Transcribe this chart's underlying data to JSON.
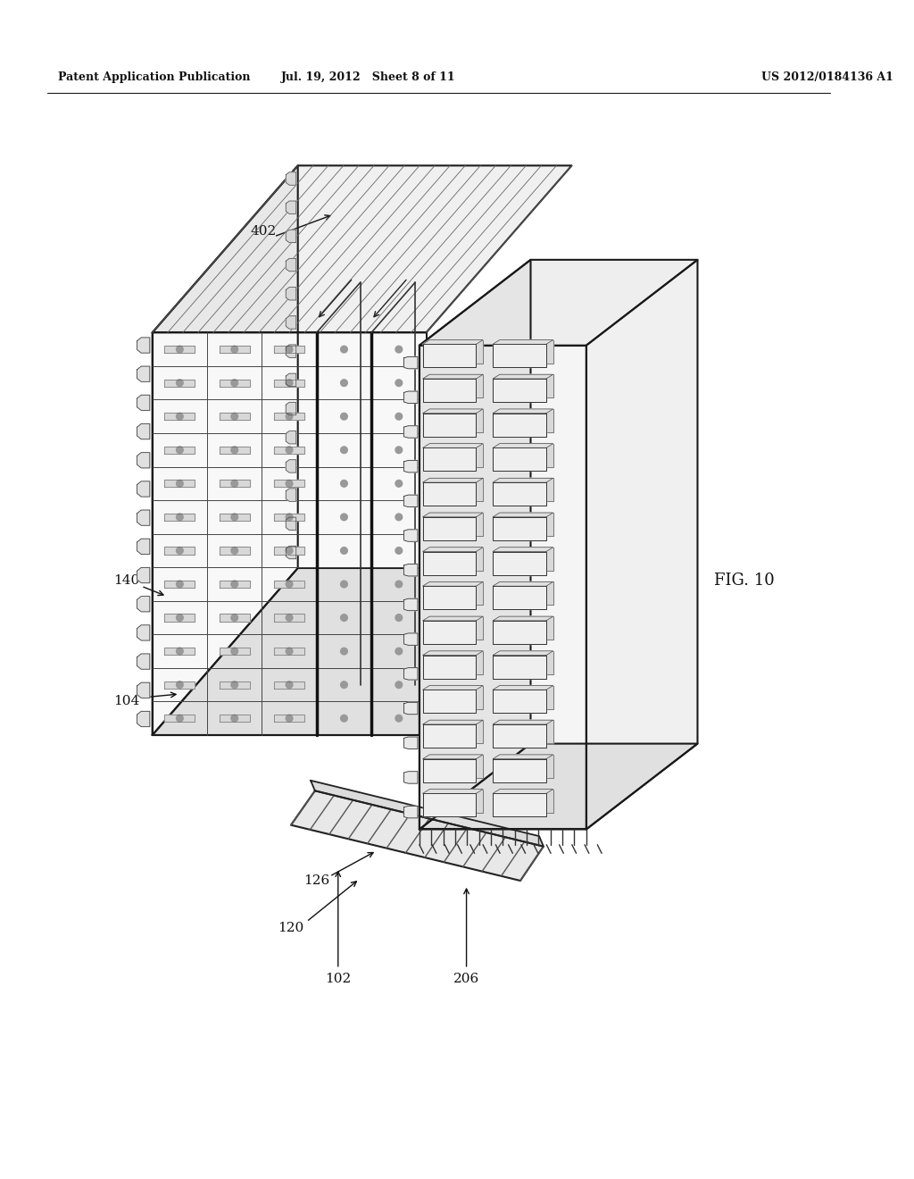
{
  "background_color": "#ffffff",
  "header_left": "Patent Application Publication",
  "header_center": "Jul. 19, 2012   Sheet 8 of 11",
  "header_right": "US 2012/0184136 A1",
  "fig_label": "FIG. 10",
  "line_color": "#1a1a1a",
  "figsize": [
    10.24,
    13.2
  ],
  "dpi": 100
}
